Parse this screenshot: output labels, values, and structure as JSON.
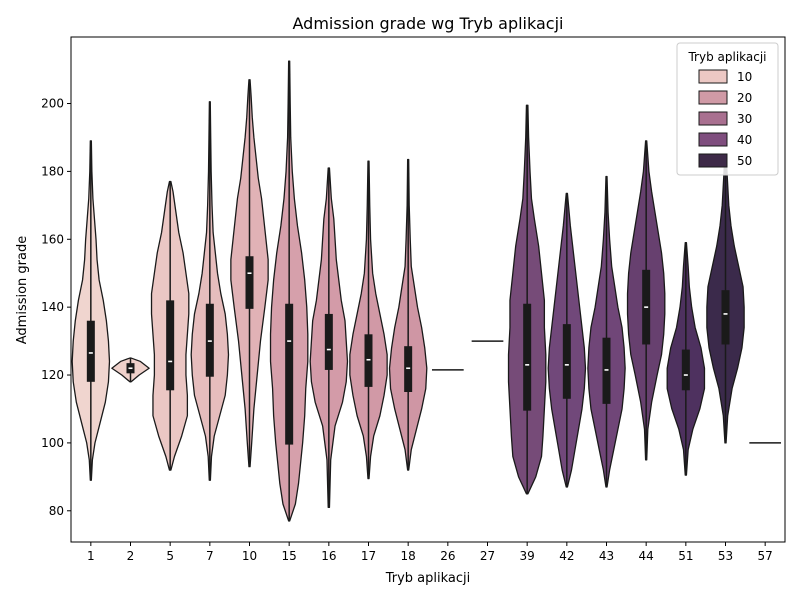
{
  "chart_data": {
    "type": "violin",
    "title": "Admission grade wg Tryb aplikacji",
    "xlabel": "Tryb aplikacji",
    "ylabel": "Admission grade",
    "ylim": [
      70.8,
      219.6
    ],
    "yticks": [
      80,
      100,
      120,
      140,
      160,
      180,
      200
    ],
    "grid": false,
    "legend": {
      "title": "Tryb aplikacji",
      "placement": "top-right",
      "entries": [
        {
          "label": "10",
          "color": "#ecc8c4"
        },
        {
          "label": "20",
          "color": "#d09aa6"
        },
        {
          "label": "30",
          "color": "#a97090"
        },
        {
          "label": "40",
          "color": "#7f4e7e"
        },
        {
          "label": "50",
          "color": "#3e2a48"
        }
      ]
    },
    "categories": [
      {
        "label": "1",
        "color": "#f0d5cf",
        "min": 89,
        "q1": 118,
        "median": 126.5,
        "q3": 136,
        "max": 189,
        "profile": [
          [
            89,
            0.5
          ],
          [
            95,
            1.5
          ],
          [
            100,
            4
          ],
          [
            106,
            9
          ],
          [
            112,
            14
          ],
          [
            118,
            17
          ],
          [
            124,
            18
          ],
          [
            130,
            17
          ],
          [
            136,
            15
          ],
          [
            142,
            12
          ],
          [
            148,
            8
          ],
          [
            154,
            6
          ],
          [
            160,
            5
          ],
          [
            166,
            3.5
          ],
          [
            172,
            2
          ],
          [
            180,
            1
          ],
          [
            189,
            0.5
          ]
        ]
      },
      {
        "label": "2",
        "color": "#efd1cb",
        "min": 118,
        "q1": 120.5,
        "median": 122,
        "q3": 123.5,
        "max": 125,
        "profile": [
          [
            118,
            0.5
          ],
          [
            120,
            7
          ],
          [
            122,
            15
          ],
          [
            124,
            8
          ],
          [
            125,
            0.5
          ]
        ]
      },
      {
        "label": "5",
        "color": "#ebc7c4",
        "min": 92,
        "q1": 115.5,
        "median": 124,
        "q3": 142,
        "max": 177,
        "profile": [
          [
            92,
            0.5
          ],
          [
            96,
            3
          ],
          [
            102,
            8
          ],
          [
            108,
            12
          ],
          [
            114,
            12
          ],
          [
            120,
            11
          ],
          [
            126,
            11
          ],
          [
            132,
            12
          ],
          [
            138,
            13
          ],
          [
            144,
            13
          ],
          [
            150,
            11
          ],
          [
            156,
            9
          ],
          [
            162,
            6
          ],
          [
            168,
            4
          ],
          [
            174,
            2
          ],
          [
            177,
            0.5
          ]
        ]
      },
      {
        "label": "7",
        "color": "#e6bdbd",
        "min": 89,
        "q1": 119.5,
        "median": 130,
        "q3": 141,
        "max": 200.5,
        "profile": [
          [
            89,
            0.5
          ],
          [
            96,
            1.5
          ],
          [
            102,
            4
          ],
          [
            108,
            9
          ],
          [
            114,
            14
          ],
          [
            120,
            16
          ],
          [
            126,
            17
          ],
          [
            132,
            16
          ],
          [
            138,
            14
          ],
          [
            144,
            10
          ],
          [
            150,
            7
          ],
          [
            156,
            5
          ],
          [
            162,
            3
          ],
          [
            170,
            2
          ],
          [
            180,
            1.2
          ],
          [
            190,
            0.8
          ],
          [
            200.5,
            0.4
          ]
        ]
      },
      {
        "label": "10",
        "color": "#e1b2b6",
        "min": 93,
        "q1": 139.5,
        "median": 150,
        "q3": 155,
        "max": 207,
        "profile": [
          [
            93,
            0.5
          ],
          [
            100,
            2
          ],
          [
            110,
            4
          ],
          [
            120,
            7
          ],
          [
            130,
            10
          ],
          [
            140,
            14
          ],
          [
            148,
            17
          ],
          [
            154,
            17
          ],
          [
            160,
            15
          ],
          [
            166,
            13
          ],
          [
            172,
            11
          ],
          [
            178,
            8
          ],
          [
            184,
            6
          ],
          [
            190,
            4
          ],
          [
            196,
            2.5
          ],
          [
            202,
            1.5
          ],
          [
            207,
            0.5
          ]
        ]
      },
      {
        "label": "15",
        "color": "#d6a0ab",
        "min": 77,
        "q1": 99.5,
        "median": 130,
        "q3": 141,
        "max": 212.5,
        "profile": [
          [
            77,
            0.5
          ],
          [
            82,
            6
          ],
          [
            88,
            9
          ],
          [
            94,
            11
          ],
          [
            100,
            13
          ],
          [
            108,
            15
          ],
          [
            116,
            16
          ],
          [
            124,
            18
          ],
          [
            132,
            18
          ],
          [
            140,
            17
          ],
          [
            148,
            15
          ],
          [
            156,
            12
          ],
          [
            164,
            8
          ],
          [
            172,
            5
          ],
          [
            180,
            3
          ],
          [
            190,
            1.5
          ],
          [
            200,
            1
          ],
          [
            212.5,
            0.5
          ]
        ]
      },
      {
        "label": "16",
        "color": "#d39ba8",
        "min": 81,
        "q1": 121.5,
        "median": 127.5,
        "q3": 138,
        "max": 181,
        "profile": [
          [
            81,
            0.5
          ],
          [
            95,
            1.5
          ],
          [
            105,
            5
          ],
          [
            112,
            11
          ],
          [
            118,
            14
          ],
          [
            124,
            15
          ],
          [
            130,
            14
          ],
          [
            136,
            13
          ],
          [
            142,
            10
          ],
          [
            148,
            8
          ],
          [
            154,
            6
          ],
          [
            160,
            5
          ],
          [
            166,
            4
          ],
          [
            172,
            2
          ],
          [
            181,
            0.5
          ]
        ]
      },
      {
        "label": "17",
        "color": "#d199a6",
        "min": 89.5,
        "q1": 116.5,
        "median": 124.5,
        "q3": 132,
        "max": 183,
        "profile": [
          [
            89.5,
            0.5
          ],
          [
            96,
            2
          ],
          [
            102,
            5
          ],
          [
            108,
            11
          ],
          [
            114,
            15
          ],
          [
            120,
            18
          ],
          [
            126,
            18
          ],
          [
            132,
            15
          ],
          [
            138,
            11
          ],
          [
            144,
            7
          ],
          [
            150,
            4
          ],
          [
            160,
            2
          ],
          [
            170,
            1.2
          ],
          [
            183,
            0.5
          ]
        ]
      },
      {
        "label": "18",
        "color": "#cf96a4",
        "min": 92,
        "q1": 115,
        "median": 122,
        "q3": 128.5,
        "max": 183.5,
        "profile": [
          [
            92,
            0.5
          ],
          [
            98,
            3
          ],
          [
            104,
            8
          ],
          [
            110,
            13
          ],
          [
            116,
            17
          ],
          [
            122,
            18
          ],
          [
            128,
            16
          ],
          [
            134,
            13
          ],
          [
            140,
            9
          ],
          [
            146,
            6
          ],
          [
            152,
            3
          ],
          [
            160,
            2
          ],
          [
            170,
            1
          ],
          [
            183.5,
            0.5
          ]
        ]
      },
      {
        "label": "26",
        "color": "#c98fa0",
        "min": 121.5,
        "q1": 121.5,
        "median": 121.5,
        "q3": 121.5,
        "max": 121.5,
        "single": true
      },
      {
        "label": "27",
        "color": "#c88d9f",
        "min": 130,
        "q1": 130,
        "median": 130,
        "q3": 130,
        "max": 130,
        "single": true
      },
      {
        "label": "39",
        "color": "#764b78",
        "min": 85,
        "q1": 109.5,
        "median": 123,
        "q3": 141,
        "max": 199.5,
        "profile": [
          [
            85,
            0.5
          ],
          [
            90,
            6
          ],
          [
            96,
            10
          ],
          [
            102,
            11
          ],
          [
            110,
            12
          ],
          [
            118,
            13
          ],
          [
            126,
            13
          ],
          [
            134,
            12
          ],
          [
            142,
            12
          ],
          [
            150,
            10
          ],
          [
            158,
            8
          ],
          [
            166,
            5
          ],
          [
            172,
            3
          ],
          [
            180,
            2
          ],
          [
            190,
            1
          ],
          [
            199.5,
            0.5
          ]
        ]
      },
      {
        "label": "42",
        "color": "#71487a",
        "min": 87,
        "q1": 113,
        "median": 123,
        "q3": 135,
        "max": 173.5,
        "profile": [
          [
            87,
            0.5
          ],
          [
            92,
            4
          ],
          [
            98,
            7
          ],
          [
            104,
            10
          ],
          [
            110,
            13
          ],
          [
            116,
            15
          ],
          [
            122,
            16
          ],
          [
            128,
            15
          ],
          [
            134,
            13
          ],
          [
            140,
            11
          ],
          [
            146,
            9
          ],
          [
            152,
            7
          ],
          [
            158,
            5
          ],
          [
            164,
            3
          ],
          [
            173.5,
            0.5
          ]
        ]
      },
      {
        "label": "43",
        "color": "#704678",
        "min": 87,
        "q1": 111.5,
        "median": 121.5,
        "q3": 131,
        "max": 178.5,
        "profile": [
          [
            87,
            0.5
          ],
          [
            92,
            3
          ],
          [
            98,
            7
          ],
          [
            104,
            11
          ],
          [
            110,
            15
          ],
          [
            116,
            17
          ],
          [
            122,
            18
          ],
          [
            128,
            17
          ],
          [
            134,
            15
          ],
          [
            140,
            11
          ],
          [
            146,
            8
          ],
          [
            152,
            5
          ],
          [
            160,
            3
          ],
          [
            168,
            1.5
          ],
          [
            178.5,
            0.5
          ]
        ]
      },
      {
        "label": "44",
        "color": "#67406f",
        "min": 95,
        "q1": 129,
        "median": 140,
        "q3": 151,
        "max": 189,
        "profile": [
          [
            95,
            0.5
          ],
          [
            104,
            1.5
          ],
          [
            112,
            5
          ],
          [
            120,
            10
          ],
          [
            126,
            14
          ],
          [
            132,
            16
          ],
          [
            138,
            17
          ],
          [
            144,
            17
          ],
          [
            150,
            16
          ],
          [
            156,
            14
          ],
          [
            162,
            11
          ],
          [
            168,
            8
          ],
          [
            174,
            5
          ],
          [
            180,
            2.5
          ],
          [
            189,
            0.5
          ]
        ]
      },
      {
        "label": "51",
        "color": "#4e315f",
        "min": 90.5,
        "q1": 115.5,
        "median": 120,
        "q3": 127.5,
        "max": 159,
        "profile": [
          [
            90.5,
            0.5
          ],
          [
            98,
            2
          ],
          [
            104,
            6
          ],
          [
            110,
            12
          ],
          [
            116,
            16
          ],
          [
            122,
            16
          ],
          [
            128,
            13
          ],
          [
            134,
            8
          ],
          [
            140,
            5
          ],
          [
            146,
            3
          ],
          [
            152,
            2
          ],
          [
            159,
            0.5
          ]
        ]
      },
      {
        "label": "53",
        "color": "#3b2a4b",
        "min": 100,
        "q1": 129,
        "median": 138,
        "q3": 145,
        "max": 185,
        "profile": [
          [
            100,
            0.5
          ],
          [
            108,
            2
          ],
          [
            116,
            6
          ],
          [
            122,
            11
          ],
          [
            128,
            15
          ],
          [
            134,
            17
          ],
          [
            140,
            17
          ],
          [
            146,
            16
          ],
          [
            152,
            12
          ],
          [
            158,
            8
          ],
          [
            164,
            5
          ],
          [
            170,
            3
          ],
          [
            176,
            2
          ],
          [
            185,
            0.5
          ]
        ]
      },
      {
        "label": "57",
        "color": "#2d1e3a",
        "min": 100,
        "q1": 100,
        "median": 100,
        "q3": 100,
        "max": 100,
        "single": true
      }
    ]
  }
}
